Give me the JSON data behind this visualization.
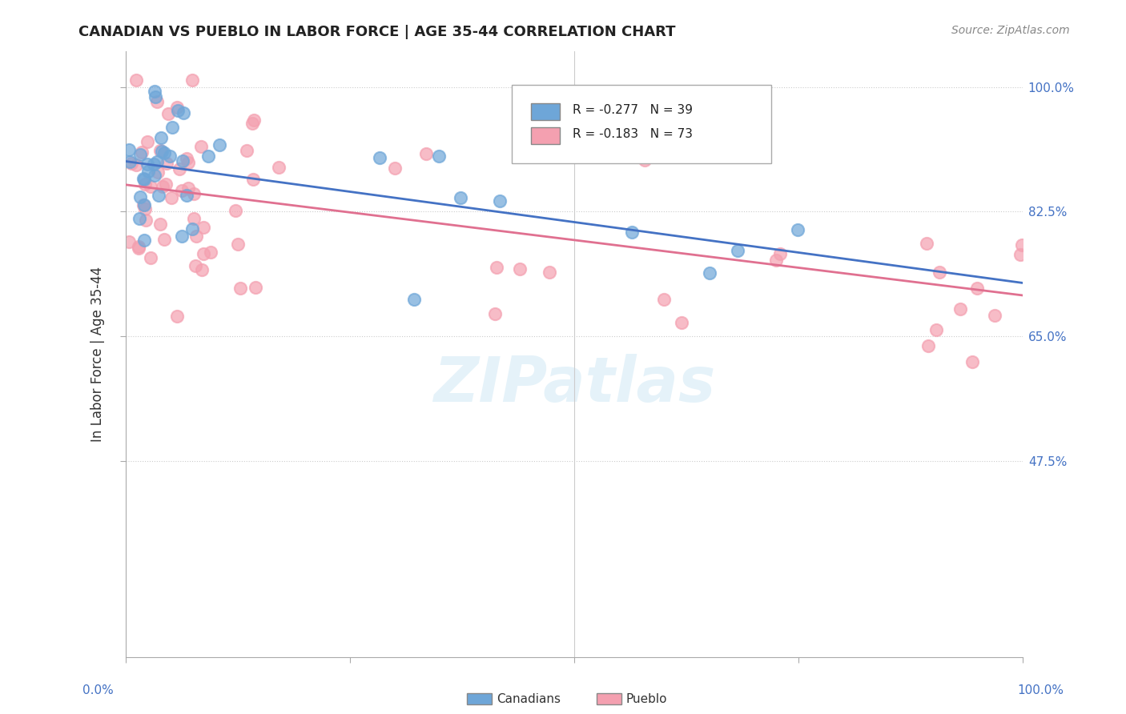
{
  "title": "CANADIAN VS PUEBLO IN LABOR FORCE | AGE 35-44 CORRELATION CHART",
  "source": "Source: ZipAtlas.com",
  "ylabel": "In Labor Force | Age 35-44",
  "ytick_labels": [
    "100.0%",
    "82.5%",
    "65.0%",
    "47.5%"
  ],
  "legend_canadian": "R = -0.277   N = 39",
  "legend_pueblo": "R = -0.183   N = 73",
  "canadian_color": "#6ea6d8",
  "pueblo_color": "#f4a0b0",
  "canadian_line_color": "#4472c4",
  "pueblo_line_color": "#e07090",
  "background_color": "#ffffff",
  "xlim": [
    0.0,
    1.0
  ],
  "ylim": [
    0.2,
    1.05
  ]
}
